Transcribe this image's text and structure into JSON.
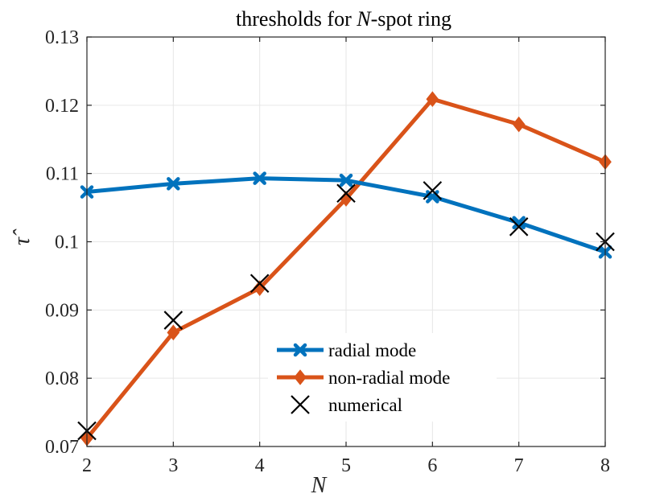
{
  "chart_data": {
    "type": "line",
    "title_prefix": "thresholds for ",
    "title_var": "N",
    "title_suffix": "-spot ring",
    "xlabel": "N",
    "ylabel": "τ̂",
    "xlim": [
      2,
      8
    ],
    "ylim": [
      0.07,
      0.13
    ],
    "xticks": [
      "2",
      "3",
      "4",
      "5",
      "6",
      "7",
      "8"
    ],
    "yticks": [
      "0.07",
      "0.08",
      "0.09",
      "0.1",
      "0.11",
      "0.12",
      "0.13"
    ],
    "grid": true,
    "legend_position": "bottom-center",
    "series": [
      {
        "name": "radial mode",
        "color": "#0072BD",
        "marker": "x-thick",
        "x": [
          2,
          3,
          4,
          5,
          6,
          7,
          8
        ],
        "y": [
          0.1073,
          0.1085,
          0.1093,
          0.109,
          0.1066,
          0.1028,
          0.0985
        ]
      },
      {
        "name": "non-radial mode",
        "color": "#D95319",
        "marker": "diamond",
        "x": [
          2,
          3,
          4,
          5,
          6,
          7,
          8
        ],
        "y": [
          0.0712,
          0.0867,
          0.0932,
          0.1063,
          0.1209,
          0.1172,
          0.1117
        ]
      },
      {
        "name": "numerical",
        "color": "#000000",
        "marker": "cross",
        "x": [
          2,
          3,
          4,
          5,
          6,
          7,
          8
        ],
        "y": [
          0.0723,
          0.0885,
          0.0939,
          0.1071,
          0.1075,
          0.1022,
          0.1
        ]
      }
    ]
  }
}
